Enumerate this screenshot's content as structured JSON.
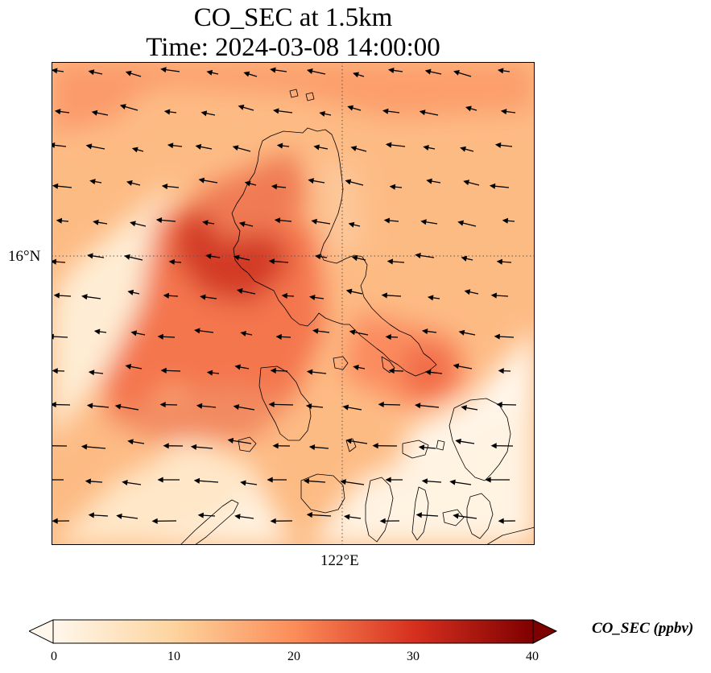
{
  "title": {
    "line1": "CO_SEC at 1.5km",
    "line2": "Time: 2024-03-08 14:00:00"
  },
  "map": {
    "region": "Luzon, Philippines",
    "variable": "CO_SEC",
    "level": "1.5km",
    "gridlines": {
      "latitude": "16°N",
      "longitude": "122°E"
    },
    "overlays": [
      "coastlines",
      "wind-vectors"
    ],
    "colormap": "OrRd"
  },
  "colorbar": {
    "label": "CO_SEC (ppbv)",
    "ticks": [
      "0",
      "10",
      "20",
      "30",
      "40"
    ],
    "min": 0,
    "max": 40,
    "extend": "both",
    "colors": [
      "#fff7ec",
      "#fdd49e",
      "#fc8d59",
      "#d7301f",
      "#7f0000"
    ]
  }
}
